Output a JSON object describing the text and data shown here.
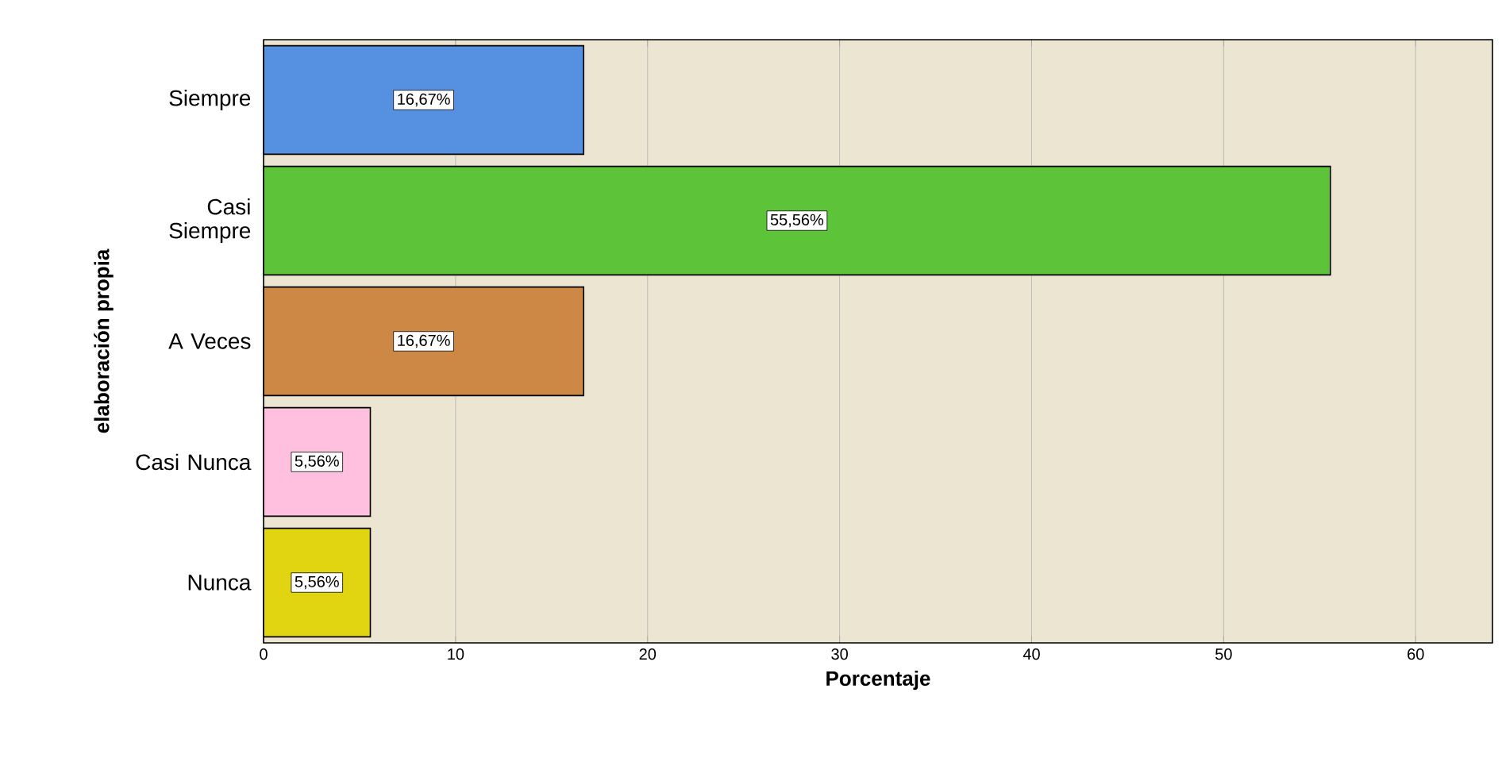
{
  "chart_data": {
    "type": "bar",
    "orientation": "horizontal",
    "categories": [
      "Siempre",
      "Casi Siempre",
      "A Veces",
      "Casi Nunca",
      "Nunca"
    ],
    "values": [
      16.67,
      55.56,
      16.67,
      5.56,
      5.56
    ],
    "colors": [
      "#5591e0",
      "#5dc43a",
      "#cc8844",
      "#ffc0e0",
      "#e0d510"
    ],
    "value_labels": [
      "16,67%",
      "55,56%",
      "16,67%",
      "5,56%",
      "5,56%"
    ],
    "xlim": [
      0,
      64
    ],
    "xticks": [
      0,
      10,
      20,
      30,
      40,
      50,
      60
    ],
    "xlabel": "Porcentaje",
    "ylabel": "elaboración propia",
    "grid": "x"
  }
}
